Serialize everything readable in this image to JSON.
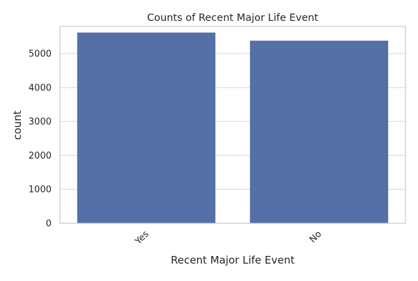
{
  "chart_data": {
    "type": "bar",
    "title": "Counts of Recent Major Life Event",
    "xlabel": "Recent Major Life Event",
    "ylabel": "count",
    "categories": [
      "Yes",
      "No"
    ],
    "values": [
      5620,
      5380
    ],
    "ylim": [
      0,
      5800
    ],
    "yticks": [
      0,
      1000,
      2000,
      3000,
      4000,
      5000
    ],
    "grid": true,
    "bar_color": "#5470a6",
    "grid_color": "#d5d5d5",
    "frame_color": "#c8c8c8"
  }
}
